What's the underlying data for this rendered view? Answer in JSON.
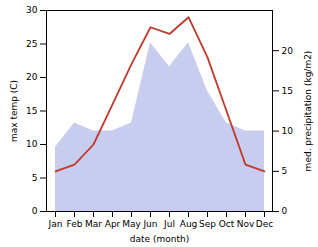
{
  "chart_data": {
    "type": "line",
    "xlabel": "date (month)",
    "ylabel": "max temp (C)",
    "y2label": "med. precipitation (kg/m2)",
    "categories": [
      "Jan",
      "Feb",
      "Mar",
      "Apr",
      "May",
      "Jun",
      "Jul",
      "Aug",
      "Sep",
      "Oct",
      "Nov",
      "Dec"
    ],
    "series": [
      {
        "type": "area",
        "axis": "y2",
        "color": "#b0b8e8",
        "values": [
          8,
          11,
          10,
          10,
          11,
          21,
          18,
          21,
          15,
          11,
          10,
          10
        ]
      },
      {
        "type": "line",
        "color": "#c0392b",
        "values": [
          6,
          7,
          10,
          16,
          22,
          27.5,
          26.5,
          29,
          23,
          15,
          7,
          6
        ]
      }
    ],
    "ylim": [
      0,
      30
    ],
    "yticks": [
      0,
      5,
      10,
      15,
      20,
      25,
      30
    ],
    "y2lim": [
      0,
      25
    ],
    "y2ticks": [
      0,
      5,
      10,
      15,
      20
    ]
  }
}
